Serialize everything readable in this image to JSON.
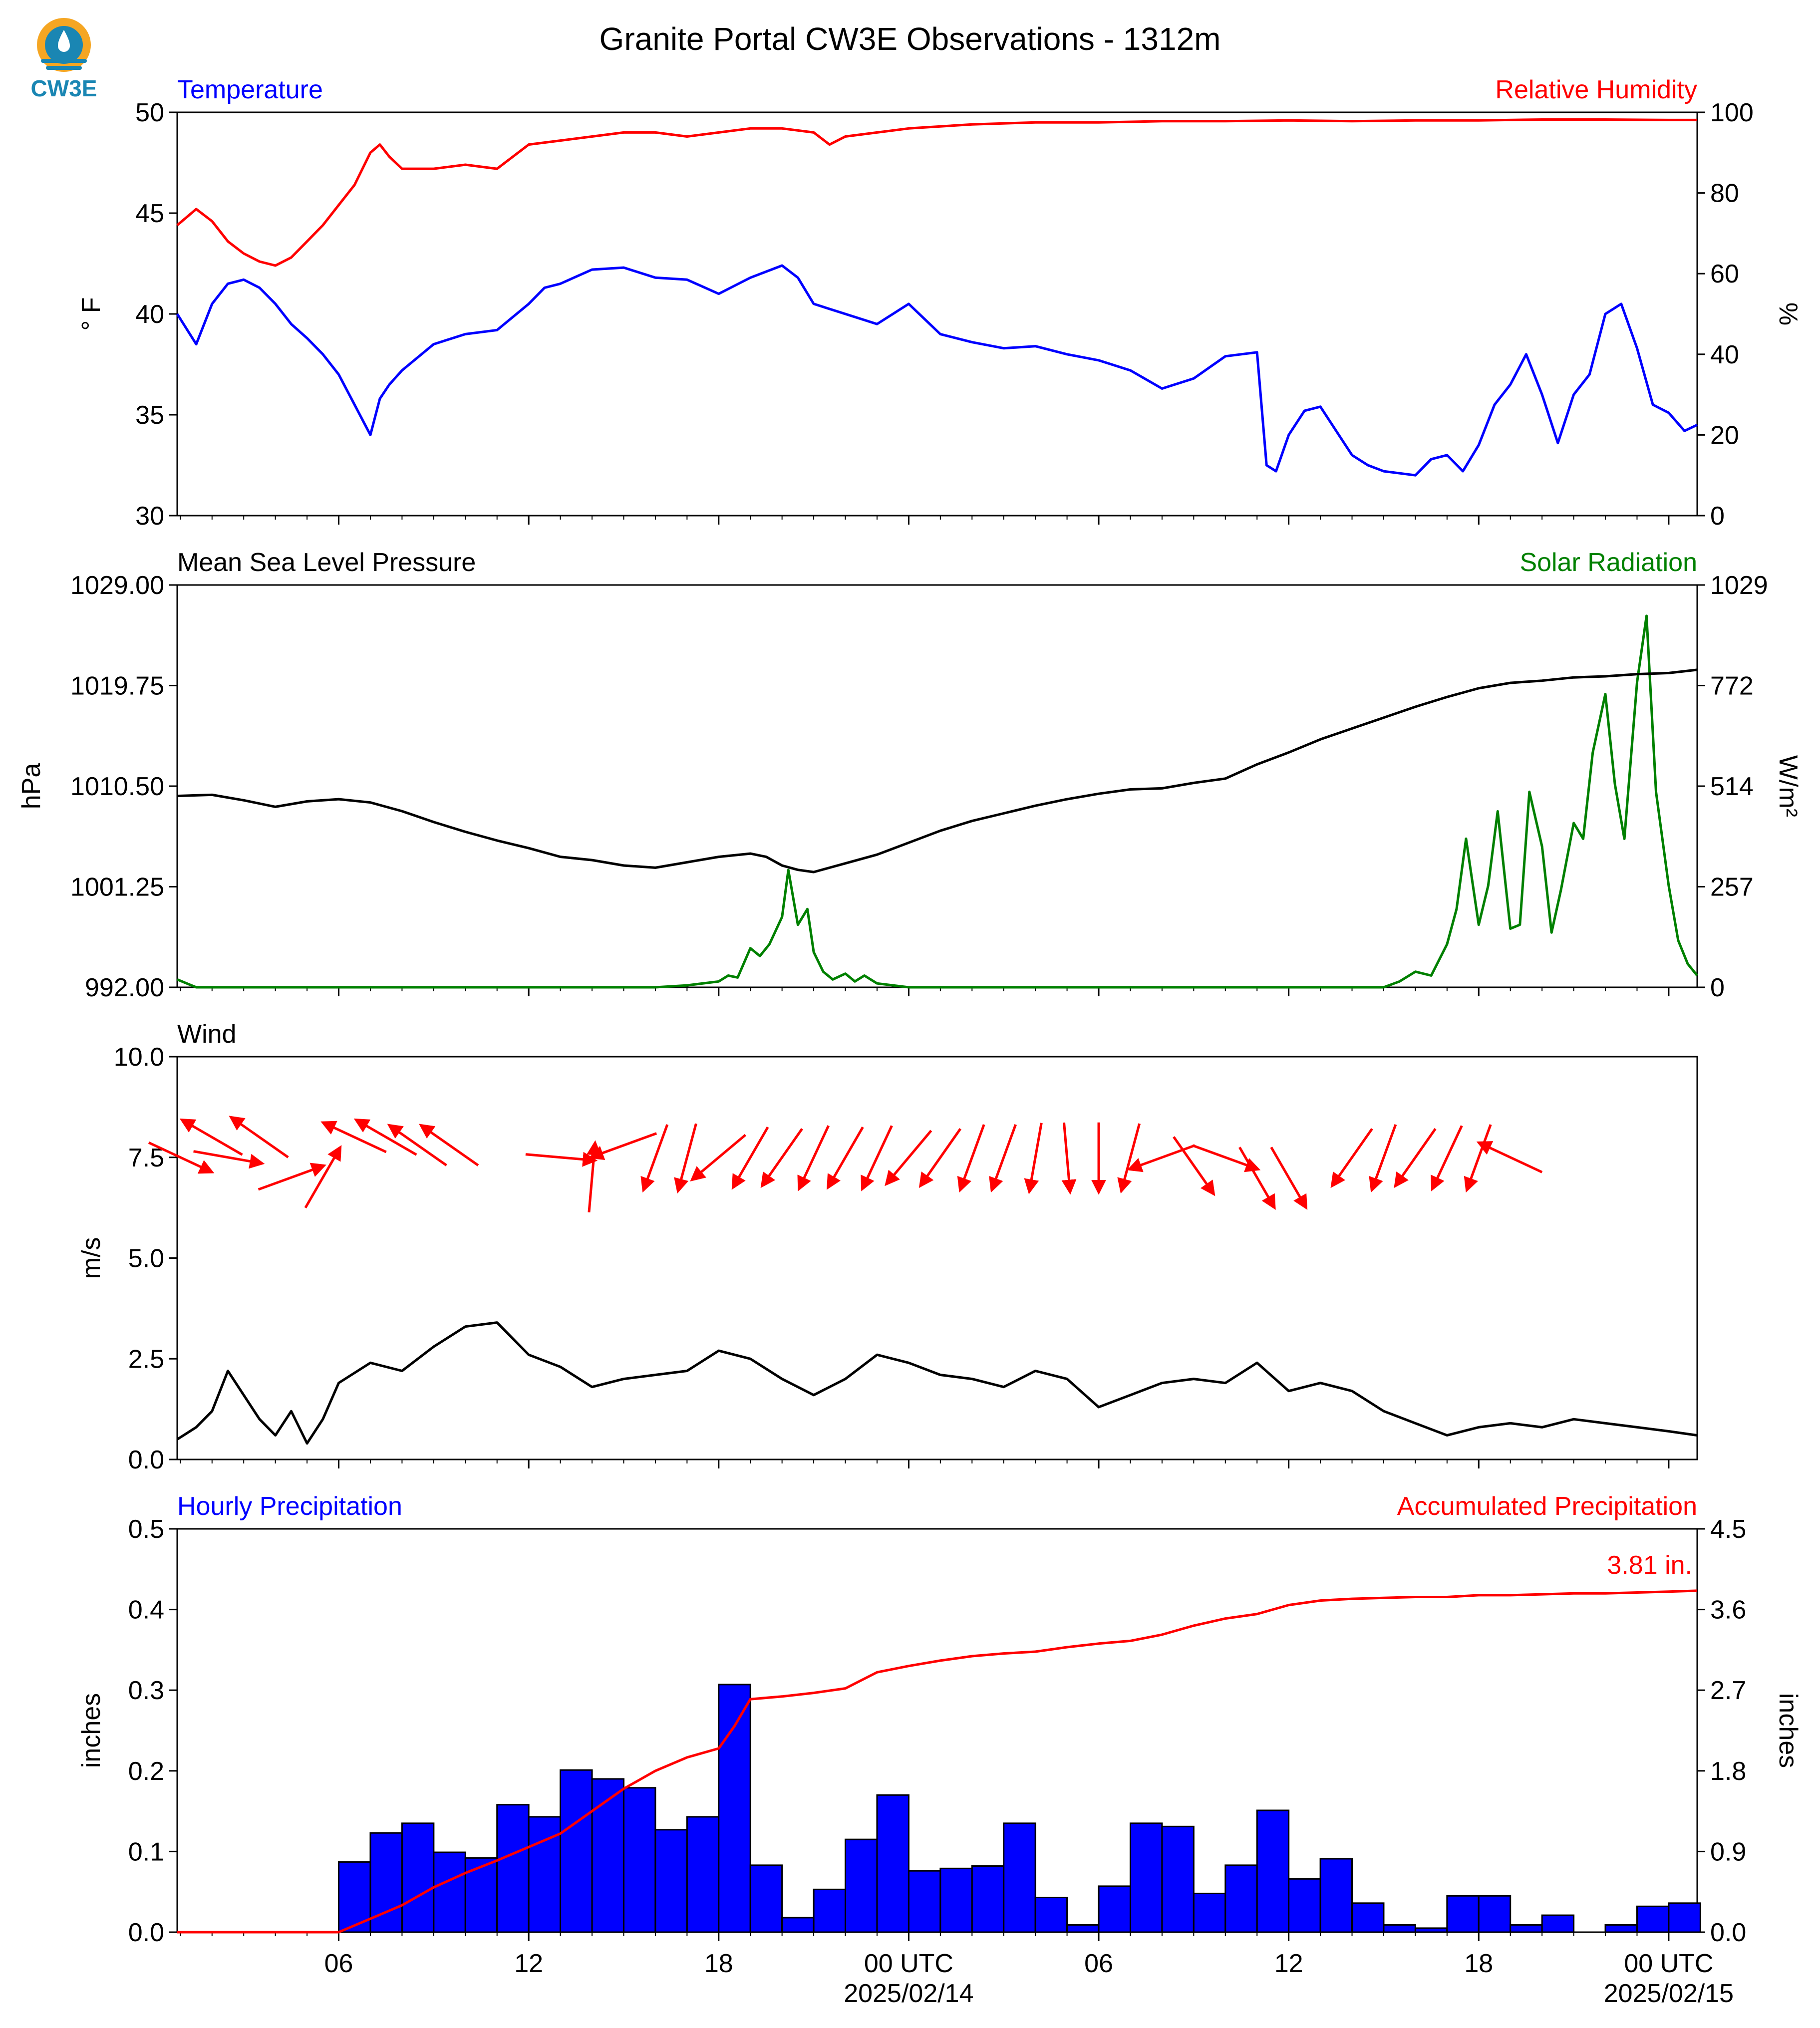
{
  "logo": {
    "text": "CW3E"
  },
  "title": "Granite Portal CW3E Observations - 1312m",
  "colors": {
    "temperature": "#0000ff",
    "humidity": "#ff0000",
    "pressure": "#000000",
    "solar": "#008000",
    "wind": "#000000",
    "arrows": "#ff0000",
    "bars": "#0000ff",
    "accum": "#ff0000"
  },
  "x_axis": {
    "ticks": [
      {
        "hour": 6,
        "label": "06",
        "sub": ""
      },
      {
        "hour": 12,
        "label": "12",
        "sub": ""
      },
      {
        "hour": 18,
        "label": "18",
        "sub": ""
      },
      {
        "hour": 24,
        "label": "00 UTC",
        "sub": "2025/02/14"
      },
      {
        "hour": 30,
        "label": "06",
        "sub": ""
      },
      {
        "hour": 36,
        "label": "12",
        "sub": ""
      },
      {
        "hour": 42,
        "label": "18",
        "sub": ""
      },
      {
        "hour": 48,
        "label": "00 UTC",
        "sub": "2025/02/15"
      }
    ],
    "range_hours": [
      0.9,
      48.9
    ]
  },
  "panels": {
    "temperature": {
      "left_label": "Temperature",
      "right_label": "Relative Humidity",
      "left_unit": "° F",
      "right_unit": "%",
      "left_ticks": [
        "30",
        "35",
        "40",
        "45",
        "50"
      ],
      "left_range": [
        30,
        50
      ],
      "right_ticks": [
        "0",
        "20",
        "40",
        "60",
        "80",
        "100"
      ],
      "right_range": [
        0,
        100
      ]
    },
    "pressure": {
      "left_label": "Mean Sea Level Pressure",
      "right_label": "Solar Radiation",
      "left_unit": "hPa",
      "right_unit": "W/m²",
      "left_ticks": [
        "992.00",
        "1001.25",
        "1010.50",
        "1019.75",
        "1029.00"
      ],
      "left_range": [
        992,
        1029
      ],
      "right_ticks": [
        "0",
        "257",
        "514",
        "772",
        "1029"
      ],
      "right_range": [
        0,
        1029
      ]
    },
    "wind": {
      "left_label": "Wind",
      "left_unit": "m/s",
      "left_ticks": [
        "0.0",
        "2.5",
        "5.0",
        "7.5",
        "10.0"
      ],
      "left_range": [
        0,
        10
      ]
    },
    "precip": {
      "left_label": "Hourly Precipitation",
      "right_label": "Accumulated Precipitation",
      "left_unit": "inches",
      "right_unit": "inches",
      "left_ticks": [
        "0.0",
        "0.1",
        "0.2",
        "0.3",
        "0.4",
        "0.5"
      ],
      "left_range": [
        0,
        0.5
      ],
      "right_ticks": [
        "0.0",
        "0.9",
        "1.8",
        "2.7",
        "3.6",
        "4.5"
      ],
      "right_range": [
        0,
        4.5
      ],
      "total_label": "3.81 in."
    }
  },
  "chart_data": {
    "type": "line",
    "title": "Granite Portal CW3E Observations - 1312m",
    "x_unit": "hours since 2025/02/13 00 UTC",
    "temperature_F": {
      "x": [
        0.9,
        1.5,
        2,
        2.5,
        3,
        3.5,
        4,
        4.5,
        5,
        5.5,
        6,
        6.5,
        7,
        7.3,
        7.6,
        8,
        9,
        10,
        11,
        12,
        12.5,
        13,
        14,
        15,
        16,
        17,
        18,
        19,
        20,
        20.5,
        21,
        22,
        23,
        24,
        25,
        26,
        27,
        28,
        29,
        30,
        31,
        32,
        33,
        34,
        34.5,
        35,
        35.3,
        35.6,
        36,
        36.5,
        37,
        38,
        38.5,
        39,
        40,
        40.5,
        41,
        41.5,
        42,
        42.5,
        43,
        43.5,
        44,
        44.5,
        45,
        45.5,
        46,
        46.5,
        47,
        47.5,
        48,
        48.5,
        48.9
      ],
      "y": [
        40,
        38.5,
        40.5,
        41.5,
        41.7,
        41.3,
        40.5,
        39.5,
        38.8,
        38,
        37,
        35.5,
        34,
        35.8,
        36.5,
        37.2,
        38.5,
        39,
        39.2,
        40.5,
        41.3,
        41.5,
        42.2,
        42.3,
        41.8,
        41.7,
        41,
        41.8,
        42.4,
        41.8,
        40.5,
        40,
        39.5,
        40.5,
        39,
        38.6,
        38.3,
        38.4,
        38,
        37.7,
        37.2,
        36.3,
        36.8,
        37.9,
        38,
        38.1,
        32.5,
        32.2,
        34,
        35.2,
        35.4,
        33,
        32.5,
        32.2,
        32,
        32.8,
        33,
        32.2,
        33.5,
        35.5,
        36.5,
        38,
        36,
        33.6,
        36,
        37,
        40,
        40.5,
        38.3,
        35.5,
        35.1,
        34.2,
        34.5
      ]
    },
    "humidity_pct": {
      "x": [
        0.9,
        1.5,
        2,
        2.5,
        3,
        3.5,
        4,
        4.5,
        5,
        5.5,
        6,
        6.5,
        7,
        7.3,
        7.6,
        8,
        9,
        10,
        11,
        12,
        13,
        14,
        15,
        16,
        17,
        18,
        19,
        20,
        21,
        21.5,
        22,
        23,
        24,
        26,
        28,
        30,
        32,
        34,
        36,
        38,
        40,
        42,
        44,
        46,
        48,
        48.9
      ],
      "y": [
        72,
        76,
        73,
        68,
        65,
        63,
        62,
        64,
        68,
        72,
        77,
        82,
        90,
        92,
        89,
        86,
        86,
        87,
        86,
        92,
        93,
        94,
        95,
        95,
        94,
        95,
        96,
        96,
        95,
        92,
        94,
        95,
        96,
        97,
        97.5,
        97.5,
        97.8,
        97.8,
        98,
        97.8,
        98,
        98,
        98.2,
        98.2,
        98.1,
        98.1
      ]
    },
    "pressure_hPa": {
      "x": [
        0.9,
        2,
        3,
        4,
        5,
        6,
        7,
        8,
        9,
        10,
        11,
        12,
        13,
        14,
        15,
        16,
        17,
        18,
        19,
        19.5,
        20,
        20.5,
        21,
        21.5,
        22,
        23,
        24,
        25,
        26,
        27,
        28,
        29,
        30,
        31,
        32,
        33,
        34,
        35,
        36,
        37,
        38,
        39,
        40,
        41,
        42,
        43,
        44,
        45,
        46,
        47,
        48,
        48.9
      ],
      "y": [
        1009.6,
        1009.7,
        1009.2,
        1008.6,
        1009.1,
        1009.3,
        1009.0,
        1008.2,
        1007.2,
        1006.3,
        1005.5,
        1004.8,
        1004.0,
        1003.7,
        1003.2,
        1003.0,
        1003.5,
        1004.0,
        1004.3,
        1004.0,
        1003.2,
        1002.8,
        1002.6,
        1003.0,
        1003.4,
        1004.2,
        1005.3,
        1006.4,
        1007.3,
        1008.0,
        1008.7,
        1009.3,
        1009.8,
        1010.2,
        1010.3,
        1010.8,
        1011.2,
        1012.5,
        1013.6,
        1014.8,
        1015.8,
        1016.8,
        1017.8,
        1018.7,
        1019.5,
        1020.0,
        1020.2,
        1020.5,
        1020.6,
        1020.8,
        1020.9,
        1021.2
      ]
    },
    "solar_Wm2": {
      "x": [
        0.9,
        1.2,
        1.5,
        16,
        17,
        18,
        18.3,
        18.6,
        19,
        19.3,
        19.6,
        20,
        20.2,
        20.5,
        20.8,
        21,
        21.3,
        21.6,
        22,
        22.3,
        22.6,
        23,
        24,
        25,
        26,
        27,
        28,
        29,
        30,
        31,
        32,
        33,
        34,
        35,
        36,
        37,
        38,
        39,
        39.5,
        40,
        40.5,
        41,
        41.3,
        41.6,
        42,
        42.3,
        42.6,
        43,
        43.3,
        43.6,
        44,
        44.3,
        44.6,
        45,
        45.3,
        45.6,
        46,
        46.3,
        46.6,
        47,
        47.3,
        47.6,
        48,
        48.3,
        48.6,
        48.9
      ],
      "y": [
        20,
        10,
        0,
        0,
        5,
        15,
        30,
        25,
        100,
        80,
        110,
        180,
        300,
        160,
        200,
        90,
        40,
        20,
        35,
        15,
        30,
        10,
        0,
        0,
        0,
        0,
        0,
        0,
        0,
        0,
        0,
        0,
        0,
        0,
        0,
        0,
        0,
        0,
        15,
        40,
        30,
        110,
        200,
        380,
        160,
        260,
        450,
        150,
        160,
        500,
        360,
        140,
        250,
        420,
        380,
        600,
        750,
        520,
        380,
        780,
        950,
        500,
        260,
        120,
        60,
        30
      ]
    },
    "wind_speed_ms": {
      "x": [
        0.9,
        1.5,
        2,
        2.5,
        3,
        3.5,
        4,
        4.5,
        5,
        5.5,
        6,
        7,
        8,
        9,
        10,
        11,
        12,
        13,
        14,
        15,
        16,
        17,
        18,
        19,
        20,
        21,
        22,
        23,
        24,
        25,
        26,
        27,
        28,
        29,
        30,
        31,
        32,
        33,
        34,
        35,
        36,
        37,
        38,
        39,
        40,
        41,
        42,
        43,
        44,
        45,
        46,
        47,
        48,
        48.9
      ],
      "y": [
        0.5,
        0.8,
        1.2,
        2.2,
        1.6,
        1.0,
        0.6,
        1.2,
        0.4,
        1.0,
        1.9,
        2.4,
        2.2,
        2.8,
        3.3,
        3.4,
        2.6,
        2.3,
        1.8,
        2.0,
        2.1,
        2.2,
        2.7,
        2.5,
        2.0,
        1.6,
        2.0,
        2.6,
        2.4,
        2.1,
        2.0,
        1.8,
        2.2,
        2.0,
        1.3,
        1.6,
        1.9,
        2.0,
        1.9,
        2.4,
        1.7,
        1.9,
        1.7,
        1.2,
        0.9,
        0.6,
        0.8,
        0.9,
        0.8,
        1.0,
        0.9,
        0.8,
        0.7,
        0.6
      ]
    },
    "wind_arrows": [
      {
        "hour": 1.0,
        "y": 7.5,
        "dir": 115
      },
      {
        "hour": 2.0,
        "y": 8.0,
        "dir": 300
      },
      {
        "hour": 2.5,
        "y": 7.5,
        "dir": 100
      },
      {
        "hour": 3.5,
        "y": 8.0,
        "dir": 305
      },
      {
        "hour": 4.5,
        "y": 7.0,
        "dir": 70
      },
      {
        "hour": 5.5,
        "y": 7.0,
        "dir": 30
      },
      {
        "hour": 6.5,
        "y": 8.0,
        "dir": 295
      },
      {
        "hour": 7.5,
        "y": 8.0,
        "dir": 300
      },
      {
        "hour": 8.5,
        "y": 7.8,
        "dir": 305
      },
      {
        "hour": 9.5,
        "y": 7.8,
        "dir": 305
      },
      {
        "hour": 13.0,
        "y": 7.5,
        "dir": 95
      },
      {
        "hour": 14.0,
        "y": 7.0,
        "dir": 5
      },
      {
        "hour": 15.0,
        "y": 7.8,
        "dir": 250
      },
      {
        "hour": 16.0,
        "y": 7.5,
        "dir": 200
      },
      {
        "hour": 17.0,
        "y": 7.5,
        "dir": 195
      },
      {
        "hour": 18.0,
        "y": 7.5,
        "dir": 230
      },
      {
        "hour": 19.0,
        "y": 7.5,
        "dir": 210
      },
      {
        "hour": 20.0,
        "y": 7.5,
        "dir": 215
      },
      {
        "hour": 21.0,
        "y": 7.5,
        "dir": 205
      },
      {
        "hour": 22.0,
        "y": 7.5,
        "dir": 210
      },
      {
        "hour": 23.0,
        "y": 7.5,
        "dir": 205
      },
      {
        "hour": 24.0,
        "y": 7.5,
        "dir": 220
      },
      {
        "hour": 25.0,
        "y": 7.5,
        "dir": 215
      },
      {
        "hour": 26.0,
        "y": 7.5,
        "dir": 200
      },
      {
        "hour": 27.0,
        "y": 7.5,
        "dir": 200
      },
      {
        "hour": 28.0,
        "y": 7.5,
        "dir": 190
      },
      {
        "hour": 29.0,
        "y": 7.5,
        "dir": 175
      },
      {
        "hour": 30.0,
        "y": 7.5,
        "dir": 180
      },
      {
        "hour": 31.0,
        "y": 7.5,
        "dir": 195
      },
      {
        "hour": 32.0,
        "y": 7.5,
        "dir": 250
      },
      {
        "hour": 33.0,
        "y": 7.3,
        "dir": 145
      },
      {
        "hour": 34.0,
        "y": 7.5,
        "dir": 110
      },
      {
        "hour": 35.0,
        "y": 7.0,
        "dir": 150
      },
      {
        "hour": 36.0,
        "y": 7.0,
        "dir": 150
      },
      {
        "hour": 38.0,
        "y": 7.5,
        "dir": 215
      },
      {
        "hour": 39.0,
        "y": 7.5,
        "dir": 200
      },
      {
        "hour": 40.0,
        "y": 7.5,
        "dir": 215
      },
      {
        "hour": 41.0,
        "y": 7.5,
        "dir": 205
      },
      {
        "hour": 42.0,
        "y": 7.5,
        "dir": 200
      },
      {
        "hour": 43.0,
        "y": 7.5,
        "dir": 295
      }
    ],
    "precip_hourly_in": {
      "hours": [
        6,
        7,
        8,
        9,
        10,
        11,
        12,
        13,
        14,
        15,
        16,
        17,
        18,
        19,
        20,
        21,
        22,
        23,
        24,
        25,
        26,
        27,
        28,
        29,
        30,
        31,
        32,
        33,
        34,
        35,
        36,
        37,
        38,
        39,
        40,
        41,
        42,
        43,
        44,
        45,
        46,
        47,
        48
      ],
      "values": [
        0.087,
        0.123,
        0.135,
        0.099,
        0.092,
        0.158,
        0.143,
        0.201,
        0.19,
        0.179,
        0.127,
        0.143,
        0.307,
        0.083,
        0.018,
        0.053,
        0.115,
        0.17,
        0.076,
        0.079,
        0.082,
        0.135,
        0.043,
        0.009,
        0.057,
        0.135,
        0.131,
        0.048,
        0.083,
        0.151,
        0.066,
        0.091,
        0.036,
        0.009,
        0.005,
        0.045,
        0.045,
        0.009,
        0.021,
        0.0,
        0.009,
        0.032,
        0.036
      ]
    },
    "precip_accum_in": {
      "x": [
        0.9,
        6,
        7,
        8,
        9,
        10,
        11,
        12,
        13,
        14,
        15,
        16,
        17,
        18,
        18.5,
        19,
        20,
        21,
        22,
        23,
        24,
        25,
        26,
        27,
        28,
        29,
        30,
        31,
        32,
        33,
        34,
        35,
        36,
        37,
        38,
        39,
        40,
        41,
        42,
        43,
        44,
        45,
        46,
        47,
        48,
        48.9
      ],
      "y": [
        0,
        0,
        0.15,
        0.3,
        0.5,
        0.66,
        0.8,
        0.95,
        1.1,
        1.35,
        1.6,
        1.8,
        1.95,
        2.05,
        2.3,
        2.6,
        2.63,
        2.67,
        2.72,
        2.9,
        2.97,
        3.03,
        3.08,
        3.11,
        3.13,
        3.18,
        3.22,
        3.25,
        3.32,
        3.42,
        3.5,
        3.55,
        3.65,
        3.7,
        3.72,
        3.73,
        3.74,
        3.74,
        3.76,
        3.76,
        3.77,
        3.78,
        3.78,
        3.79,
        3.8,
        3.81
      ]
    }
  }
}
